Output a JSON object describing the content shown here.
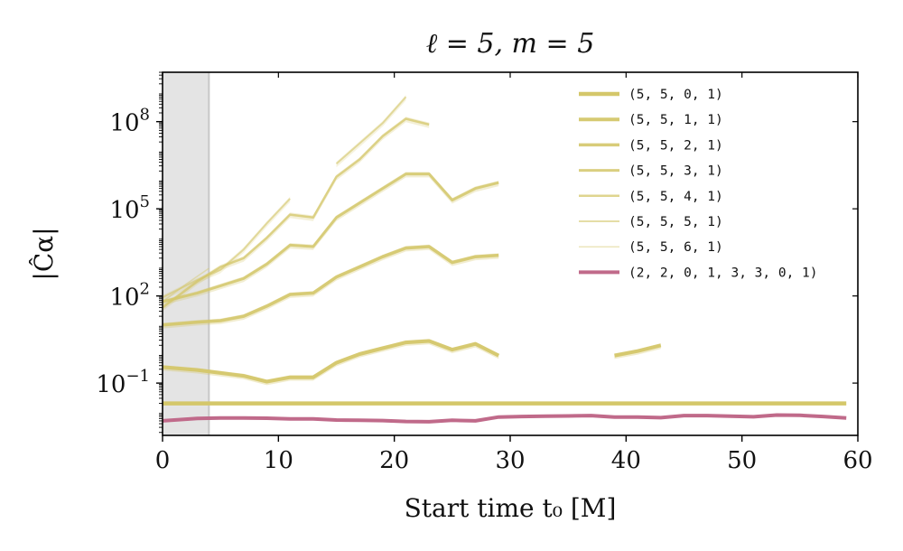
{
  "chart_data": {
    "type": "line",
    "title": "ℓ = 5, m = 5",
    "xlabel": "Start time t₀ [M]",
    "ylabel": "|Ĉα|",
    "xlim": [
      0,
      60
    ],
    "ylim_log10": [
      -2.8,
      9.7
    ],
    "yscale": "log",
    "x_ticks": [
      0,
      10,
      20,
      30,
      40,
      50,
      60
    ],
    "y_ticks": [
      {
        "exp": 8,
        "base": "10",
        "sup": "8"
      },
      {
        "exp": 5,
        "base": "10",
        "sup": "5"
      },
      {
        "exp": 2,
        "base": "10",
        "sup": "2"
      },
      {
        "exp": -1,
        "base": "10",
        "sup": "−1"
      }
    ],
    "shaded_region": {
      "x_start": 0,
      "x_end": 4,
      "color": "#e4e4e4"
    },
    "legend_position": "top-right",
    "series": [
      {
        "name": "(5, 5, 0, 1)",
        "color": "#d4c76a",
        "opacity": 1.0,
        "width": 4.5,
        "has_band": false,
        "segments": [
          [
            [
              0,
              -1.7
            ],
            [
              59,
              -1.7
            ]
          ]
        ]
      },
      {
        "name": "(5, 5, 1, 1)",
        "color": "#d4c76a",
        "opacity": 0.95,
        "width": 4.0,
        "has_band": true,
        "segments": [
          [
            [
              0,
              -0.45
            ],
            [
              3,
              -0.55
            ],
            [
              5,
              -0.65
            ],
            [
              7,
              -0.75
            ],
            [
              9,
              -0.95
            ],
            [
              11,
              -0.8
            ],
            [
              13,
              -0.8
            ],
            [
              15,
              -0.3
            ],
            [
              17,
              0.0
            ],
            [
              19,
              0.2
            ],
            [
              21,
              0.4
            ],
            [
              23,
              0.45
            ],
            [
              25,
              0.15
            ],
            [
              27,
              0.35
            ],
            [
              29,
              -0.05
            ]
          ],
          [
            [
              39,
              -0.05
            ],
            [
              41,
              0.1
            ],
            [
              43,
              0.3
            ]
          ]
        ]
      },
      {
        "name": "(5, 5, 2, 1)",
        "color": "#d4c76a",
        "opacity": 0.9,
        "width": 3.5,
        "has_band": true,
        "segments": [
          [
            [
              0,
              1.0
            ],
            [
              3,
              1.1
            ],
            [
              5,
              1.15
            ],
            [
              7,
              1.3
            ],
            [
              9,
              1.65
            ],
            [
              11,
              2.05
            ],
            [
              13,
              2.1
            ],
            [
              15,
              2.65
            ],
            [
              17,
              3.0
            ],
            [
              19,
              3.35
            ],
            [
              21,
              3.65
            ],
            [
              23,
              3.7
            ],
            [
              25,
              3.15
            ],
            [
              27,
              3.35
            ],
            [
              29,
              3.4
            ]
          ]
        ]
      },
      {
        "name": "(5, 5, 3, 1)",
        "color": "#d4c76a",
        "opacity": 0.85,
        "width": 3.0,
        "has_band": true,
        "segments": [
          [
            [
              0,
              1.8
            ],
            [
              3,
              2.1
            ],
            [
              5,
              2.35
            ],
            [
              7,
              2.6
            ],
            [
              9,
              3.1
            ],
            [
              11,
              3.75
            ],
            [
              13,
              3.7
            ],
            [
              15,
              4.7
            ],
            [
              17,
              5.2
            ],
            [
              19,
              5.7
            ],
            [
              21,
              6.2
            ],
            [
              23,
              6.2
            ],
            [
              25,
              5.3
            ],
            [
              27,
              5.7
            ],
            [
              29,
              5.9
            ]
          ]
        ]
      },
      {
        "name": "(5, 5, 4, 1)",
        "color": "#d4c76a",
        "opacity": 0.75,
        "width": 2.5,
        "has_band": true,
        "segments": [
          [
            [
              0,
              1.6
            ],
            [
              3,
              2.5
            ],
            [
              5,
              3.0
            ],
            [
              7,
              3.3
            ],
            [
              9,
              4.0
            ],
            [
              11,
              4.8
            ],
            [
              13,
              4.7
            ],
            [
              15,
              6.1
            ],
            [
              17,
              6.7
            ],
            [
              19,
              7.5
            ],
            [
              21,
              8.1
            ],
            [
              23,
              7.9
            ]
          ]
        ]
      },
      {
        "name": "(5, 5, 5, 1)",
        "color": "#d4c76a",
        "opacity": 0.6,
        "width": 2.0,
        "has_band": true,
        "segments": [
          [
            [
              0,
              1.95
            ],
            [
              3,
              2.55
            ],
            [
              5,
              2.9
            ],
            [
              7,
              3.6
            ],
            [
              9,
              4.5
            ],
            [
              11,
              5.35
            ]
          ],
          [
            [
              15,
              6.55
            ],
            [
              17,
              7.25
            ],
            [
              19,
              7.95
            ],
            [
              21,
              8.85
            ]
          ]
        ]
      },
      {
        "name": "(5, 5, 6, 1)",
        "color": "#d4c76a",
        "opacity": 0.45,
        "width": 1.5,
        "has_band": false,
        "segments": [
          [
            [
              0,
              1.8
            ],
            [
              2,
              2.4
            ],
            [
              4,
              2.95
            ]
          ]
        ]
      },
      {
        "name": "(2, 2, 0, 1, 3, 3, 0, 1)",
        "color": "#c06a8a",
        "opacity": 1.0,
        "width": 4.0,
        "has_band": false,
        "segments": [
          [
            [
              0,
              -2.3
            ],
            [
              3,
              -2.22
            ],
            [
              5,
              -2.2
            ],
            [
              7,
              -2.2
            ],
            [
              9,
              -2.21
            ],
            [
              11,
              -2.23
            ],
            [
              13,
              -2.23
            ],
            [
              15,
              -2.27
            ],
            [
              17,
              -2.28
            ],
            [
              19,
              -2.29
            ],
            [
              21,
              -2.32
            ],
            [
              23,
              -2.33
            ],
            [
              25,
              -2.28
            ],
            [
              27,
              -2.3
            ],
            [
              29,
              -2.17
            ],
            [
              31,
              -2.15
            ],
            [
              33,
              -2.14
            ],
            [
              35,
              -2.13
            ],
            [
              37,
              -2.12
            ],
            [
              39,
              -2.17
            ],
            [
              41,
              -2.17
            ],
            [
              43,
              -2.19
            ],
            [
              45,
              -2.12
            ],
            [
              47,
              -2.12
            ],
            [
              49,
              -2.14
            ],
            [
              51,
              -2.16
            ],
            [
              53,
              -2.1
            ],
            [
              55,
              -2.11
            ],
            [
              57,
              -2.15
            ],
            [
              59,
              -2.2
            ]
          ]
        ]
      }
    ]
  }
}
